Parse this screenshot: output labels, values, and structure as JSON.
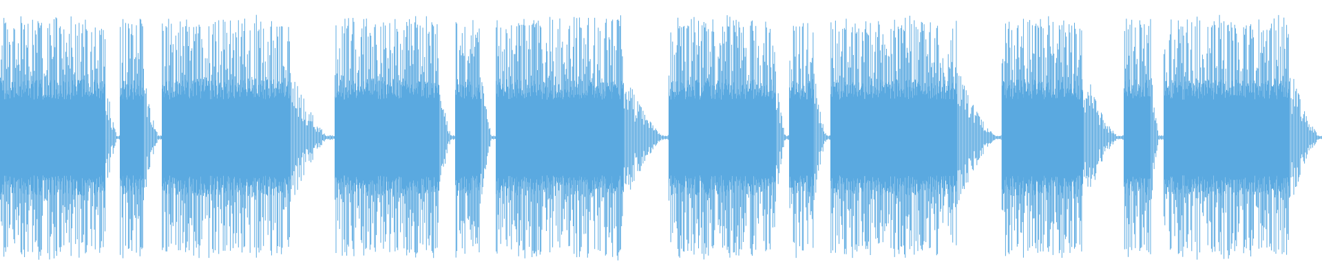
{
  "waveform": {
    "color": "#5aa9e0"
  }
}
